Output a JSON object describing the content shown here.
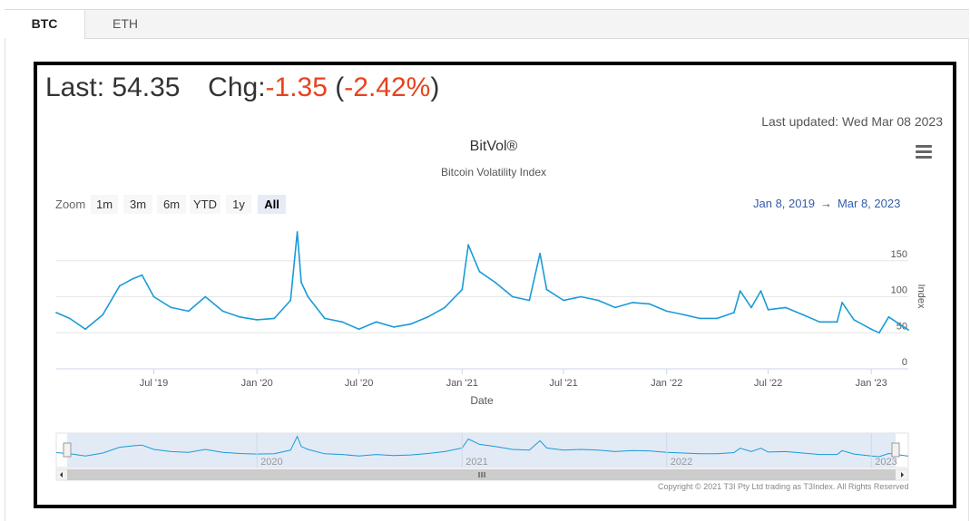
{
  "tabs": [
    {
      "label": "BTC",
      "active": true
    },
    {
      "label": "ETH",
      "active": false
    }
  ],
  "quote": {
    "last_label": "Last:",
    "last_value": "54.35",
    "chg_label": "Chg:",
    "chg_value": "-1.35",
    "chg_open": "(",
    "chg_pct": "-2.42%",
    "chg_close": ")",
    "neg_color": "#e8421d"
  },
  "last_updated": "Last updated: Wed Mar 08 2023",
  "zoom": {
    "label": "Zoom",
    "buttons": [
      "1m",
      "3m",
      "6m",
      "YTD",
      "1y",
      "All"
    ],
    "selected": "All"
  },
  "range": {
    "from": "Jan 8, 2019",
    "arrow": "→",
    "to": "Mar 8, 2023"
  },
  "copyright": "Copyright © 2021 T3I Pty Ltd trading as T3Index. All Rights Reserved",
  "icons": {
    "menu": "hamburger-menu-icon"
  },
  "colors": {
    "series": "#1a9bd7",
    "navigator_fill": "#dfe8f5",
    "accent": "#335cad"
  },
  "chart_data": {
    "type": "line",
    "title": "BitVol®",
    "subtitle": "Bitcoin Volatility Index",
    "xlabel": "Date",
    "ylabel": "Index",
    "ylim": [
      0,
      200
    ],
    "yticks": [
      0,
      50,
      100,
      150
    ],
    "grid": true,
    "x_tick_labels": [
      "Jul '19",
      "Jan '20",
      "Jul '20",
      "Jan '21",
      "Jul '21",
      "Jan '22",
      "Jul '22",
      "Jan '23"
    ],
    "navigator_labels": [
      "2020",
      "2021",
      "2022",
      "2023"
    ],
    "series": [
      {
        "x": [
          "2019-01-08",
          "2019-02-01",
          "2019-03-01",
          "2019-04-01",
          "2019-05-01",
          "2019-05-25",
          "2019-06-10",
          "2019-07-01",
          "2019-08-01",
          "2019-09-01",
          "2019-10-01",
          "2019-11-01",
          "2019-12-01",
          "2020-01-01",
          "2020-02-01",
          "2020-03-01",
          "2020-03-13",
          "2020-03-20",
          "2020-04-01",
          "2020-05-01",
          "2020-06-01",
          "2020-07-01",
          "2020-08-01",
          "2020-09-01",
          "2020-10-01",
          "2020-11-01",
          "2020-12-01",
          "2021-01-01",
          "2021-01-12",
          "2021-02-01",
          "2021-03-01",
          "2021-04-01",
          "2021-05-01",
          "2021-05-20",
          "2021-06-01",
          "2021-07-01",
          "2021-08-01",
          "2021-09-01",
          "2021-10-01",
          "2021-11-01",
          "2021-12-01",
          "2022-01-01",
          "2022-02-01",
          "2022-03-01",
          "2022-04-01",
          "2022-05-01",
          "2022-05-12",
          "2022-06-01",
          "2022-06-18",
          "2022-07-01",
          "2022-08-01",
          "2022-09-01",
          "2022-10-01",
          "2022-11-01",
          "2022-11-10",
          "2022-12-01",
          "2023-01-01",
          "2023-01-15",
          "2023-02-01",
          "2023-03-08"
        ],
        "y": [
          78,
          70,
          55,
          75,
          115,
          125,
          130,
          100,
          85,
          80,
          100,
          80,
          72,
          68,
          70,
          95,
          190,
          120,
          100,
          70,
          65,
          55,
          65,
          58,
          62,
          72,
          85,
          110,
          172,
          135,
          120,
          100,
          95,
          160,
          110,
          95,
          100,
          95,
          85,
          92,
          90,
          80,
          75,
          70,
          70,
          78,
          108,
          85,
          108,
          82,
          85,
          75,
          65,
          65,
          92,
          68,
          55,
          50,
          72,
          54
        ]
      }
    ]
  }
}
